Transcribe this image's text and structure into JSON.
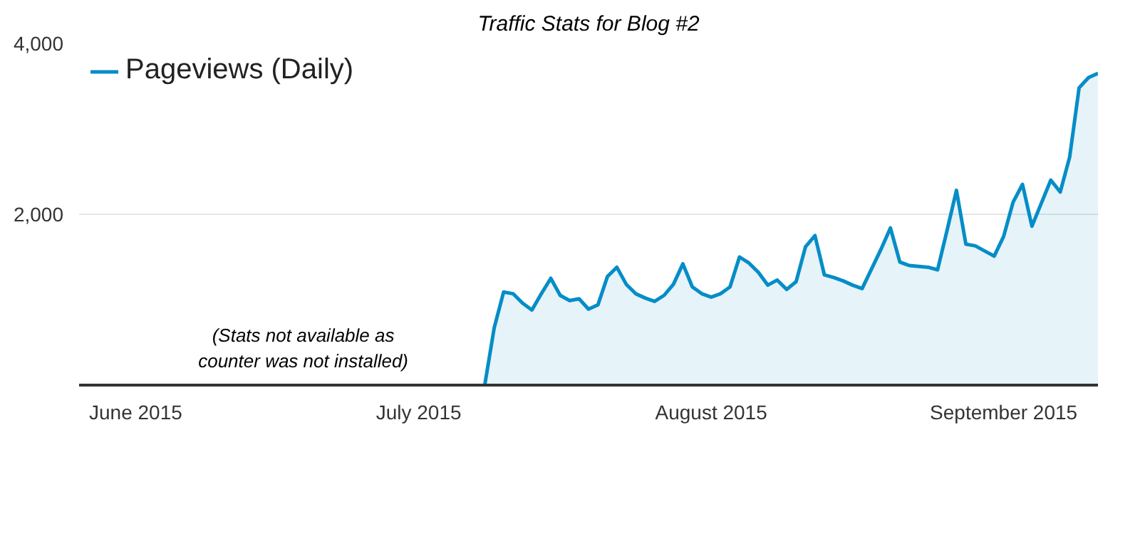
{
  "chart_data": {
    "type": "area",
    "title": "Traffic Stats for Blog #2",
    "x": [
      "2015-07-08",
      "2015-07-09",
      "2015-07-10",
      "2015-07-11",
      "2015-07-12",
      "2015-07-13",
      "2015-07-14",
      "2015-07-15",
      "2015-07-16",
      "2015-07-17",
      "2015-07-18",
      "2015-07-19",
      "2015-07-20",
      "2015-07-21",
      "2015-07-22",
      "2015-07-23",
      "2015-07-24",
      "2015-07-25",
      "2015-07-26",
      "2015-07-27",
      "2015-07-28",
      "2015-07-29",
      "2015-07-30",
      "2015-07-31",
      "2015-08-01",
      "2015-08-02",
      "2015-08-03",
      "2015-08-04",
      "2015-08-05",
      "2015-08-06",
      "2015-08-07",
      "2015-08-08",
      "2015-08-09",
      "2015-08-10",
      "2015-08-11",
      "2015-08-12",
      "2015-08-13",
      "2015-08-14",
      "2015-08-15",
      "2015-08-16",
      "2015-08-17",
      "2015-08-18",
      "2015-08-19",
      "2015-08-20",
      "2015-08-21",
      "2015-08-22",
      "2015-08-23",
      "2015-08-24",
      "2015-08-25",
      "2015-08-26",
      "2015-08-27",
      "2015-08-28",
      "2015-08-29",
      "2015-08-30",
      "2015-08-31",
      "2015-09-01",
      "2015-09-02",
      "2015-09-03",
      "2015-09-04",
      "2015-09-05",
      "2015-09-06",
      "2015-09-07",
      "2015-09-08",
      "2015-09-09",
      "2015-09-10",
      "2015-09-11"
    ],
    "series": [
      {
        "name": "Pageviews (Daily)",
        "color": "#058dc7",
        "values": [
          0,
          670,
          1090,
          1070,
          960,
          880,
          1070,
          1250,
          1050,
          990,
          1010,
          890,
          940,
          1270,
          1380,
          1180,
          1070,
          1020,
          980,
          1050,
          1180,
          1420,
          1150,
          1070,
          1030,
          1070,
          1150,
          1500,
          1430,
          1320,
          1170,
          1230,
          1120,
          1210,
          1620,
          1750,
          1290,
          1260,
          1220,
          1170,
          1130,
          1360,
          1590,
          1840,
          1440,
          1400,
          1390,
          1380,
          1350,
          1810,
          2280,
          1650,
          1630,
          1570,
          1510,
          1740,
          2140,
          2350,
          1860,
          2130,
          2400,
          2260,
          2670,
          3480,
          3600,
          3650
        ]
      }
    ],
    "xlim": [
      "2015-05-26",
      "2015-09-11"
    ],
    "xticks": [
      {
        "value": "2015-06-01",
        "label": "June 2015"
      },
      {
        "value": "2015-07-01",
        "label": "July 2015"
      },
      {
        "value": "2015-08-01",
        "label": "August 2015"
      },
      {
        "value": "2015-09-01",
        "label": "September 2015"
      }
    ],
    "ylim": [
      0,
      4000
    ],
    "yticks": [
      {
        "value": 2000,
        "label": "2,000"
      },
      {
        "value": 4000,
        "label": "4,000"
      }
    ],
    "grid": "y",
    "legend": "top left",
    "marker": "none",
    "line_style": "solid",
    "annotations": [
      "(Stats not available as counter was not installed)"
    ]
  }
}
